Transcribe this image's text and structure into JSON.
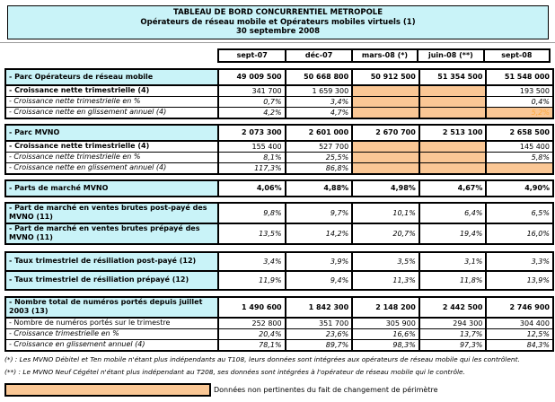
{
  "title": {
    "line1": "TABLEAU DE BORD CONCURRENTIEL METROPOLE",
    "line2": "Opérateurs de réseau mobile et Opérateurs mobiles virtuels (1)",
    "line3": "30 septembre 2008"
  },
  "columns": [
    "sept-07",
    "déc-07",
    "mars-08 (*)",
    "juin-08 (**)",
    "sept-08"
  ],
  "colors": {
    "cyan": "#c9f3f8",
    "na-bg": "#fac795",
    "na-text": "#ffa93c",
    "border": "#000000"
  },
  "sections": [
    {
      "name": "parc-operateurs-reseau-mobile",
      "rows": [
        {
          "label": "- Parc Opérateurs de réseau mobile",
          "label_bg": "cyan",
          "label_style": "bold",
          "value_style": "bold",
          "height": "hp",
          "values": [
            "49 009 500",
            "50 668 800",
            "50 912 500",
            "51 354 500",
            "51 548 000"
          ]
        },
        {
          "label": "- Croissance nette trimestrielle (4)",
          "label_bg": "white",
          "label_style": "bold",
          "value_style": "regular",
          "height": "hs",
          "sep": true,
          "values": [
            "341 700",
            "1 659 300",
            "",
            "",
            "193 500"
          ],
          "na_cols": [
            2,
            3
          ]
        },
        {
          "label": "- Croissance nette trimestrielle en %",
          "label_bg": "white",
          "label_style": "italic",
          "value_style": "italic",
          "height": "hs",
          "values": [
            "0,7%",
            "3,4%",
            "",
            "",
            "0,4%"
          ],
          "na_cols": [
            2,
            3
          ]
        },
        {
          "label": "- Croissance nette en glissement annuel (4)",
          "label_bg": "white",
          "label_style": "italic",
          "value_style": "italic",
          "height": "hs",
          "values": [
            "4,2%",
            "4,7%",
            "",
            "",
            "5,2%"
          ],
          "na_cols": [
            2,
            3
          ],
          "na_text_cols": [
            4
          ]
        }
      ]
    },
    {
      "name": "parc-mvno",
      "rows": [
        {
          "label": "- Parc MVNO",
          "label_bg": "cyan",
          "label_style": "bold",
          "value_style": "bold",
          "height": "hp",
          "values": [
            "2 073 300",
            "2 601 000",
            "2 670 700",
            "2 513 100",
            "2 658 500"
          ]
        },
        {
          "label": "- Croissance nette trimestrielle (4)",
          "label_bg": "white",
          "label_style": "bold",
          "value_style": "regular",
          "height": "hs",
          "sep": true,
          "values": [
            "155 400",
            "527 700",
            "",
            "",
            "145 400"
          ],
          "na_cols": [
            2,
            3
          ]
        },
        {
          "label": "- Croissance nette trimestrielle en %",
          "label_bg": "white",
          "label_style": "italic",
          "value_style": "italic",
          "height": "hs",
          "values": [
            "8,1%",
            "25,5%",
            "",
            "",
            "5,8%"
          ],
          "na_cols": [
            2,
            3
          ]
        },
        {
          "label": "- Croissance nette en glissement annuel (4)",
          "label_bg": "white",
          "label_style": "italic",
          "value_style": "italic",
          "height": "hs",
          "values": [
            "117,3%",
            "86,8%",
            "",
            "",
            ""
          ],
          "na_cols": [
            2,
            3,
            4
          ]
        }
      ]
    },
    {
      "name": "parts-de-marche-mvno",
      "rows": [
        {
          "label": "- Parts de marché MVNO",
          "label_bg": "cyan",
          "label_style": "bold",
          "value_style": "bold",
          "height": "hp",
          "values": [
            "4,06%",
            "4,88%",
            "4,98%",
            "4,67%",
            "4,90%"
          ]
        }
      ]
    },
    {
      "name": "part-de-marche-ventes-brutes",
      "rows": [
        {
          "label": "- Part de marché en ventes brutes post-payé des MVNO (11)",
          "label_bg": "cyan",
          "label_style": "bold",
          "value_style": "italic",
          "height": "h2l",
          "values": [
            "9,8%",
            "9,7%",
            "10,1%",
            "6,4%",
            "6,5%"
          ]
        },
        {
          "label": "- Part de marché en ventes brutes prépayé des MVNO (11)",
          "label_bg": "cyan",
          "label_style": "bold",
          "value_style": "italic",
          "height": "h2l",
          "sep": true,
          "values": [
            "13,5%",
            "14,2%",
            "20,7%",
            "19,4%",
            "16,0%"
          ]
        }
      ]
    },
    {
      "name": "taux-resiliation",
      "rows": [
        {
          "label": "- Taux trimestriel de résiliation post-payé (12)",
          "label_bg": "cyan",
          "label_style": "bold",
          "value_style": "italic",
          "height": "hm",
          "values": [
            "3,4%",
            "3,9%",
            "3,5%",
            "3,1%",
            "3,3%"
          ]
        },
        {
          "label": "- Taux trimestriel de résiliation prépayé (12)",
          "label_bg": "cyan",
          "label_style": "bold",
          "value_style": "italic",
          "height": "hm",
          "sep": true,
          "values": [
            "11,9%",
            "9,4%",
            "11,3%",
            "11,8%",
            "13,9%"
          ]
        }
      ]
    },
    {
      "name": "numeros-portes",
      "rows": [
        {
          "label": "- Nombre total de numéros portés depuis juillet 2003 (13)",
          "label_bg": "cyan",
          "label_style": "bold",
          "value_style": "bold",
          "height": "h2l",
          "values": [
            "1 490 600",
            "1 842 300",
            "2 148 200",
            "2 442 500",
            "2 746 900"
          ]
        },
        {
          "label": "- Nombre de numéros portés sur le trimestre",
          "label_bg": "white",
          "label_style": "regular",
          "value_style": "regular",
          "height": "hs",
          "sep": true,
          "values": [
            "252 800",
            "351 700",
            "305 900",
            "294 300",
            "304 400"
          ]
        },
        {
          "label": "- Croissance trimestrielle en %",
          "label_bg": "white",
          "label_style": "italic",
          "value_style": "italic",
          "height": "hs",
          "values": [
            "20,4%",
            "23,6%",
            "16,6%",
            "13,7%",
            "12,5%"
          ]
        },
        {
          "label": "- Croissance en glissement annuel (4)",
          "label_bg": "white",
          "label_style": "italic",
          "value_style": "italic",
          "height": "hs",
          "values": [
            "78,1%",
            "89,7%",
            "98,3%",
            "97,3%",
            "84,3%"
          ]
        }
      ]
    }
  ],
  "footnotes": [
    "(*) : Les MVNO Débitel et Ten mobile n'étant plus indépendants au T108, leurs données sont intégrées aux opérateurs de réseau mobile qui les contrôlent.",
    "(**) : Le MVNO Neuf Cégétel n'étant plus indépendant au T208, ses données sont intégrées à l'opérateur de réseau mobile qui le contrôle."
  ],
  "legend": "Données non pertinentes du fait de changement de périmètre"
}
